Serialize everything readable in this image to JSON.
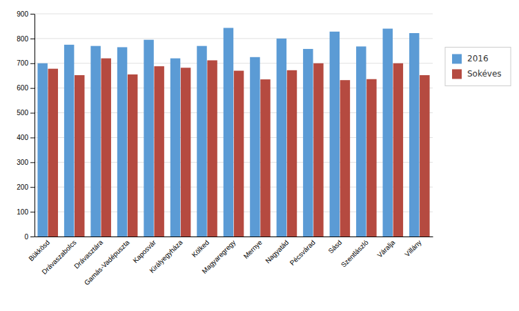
{
  "chart_data": {
    "type": "bar",
    "categories": [
      "Bükkösd",
      "Drávaszabolcs",
      "Drávasztára",
      "Gamás-Vadépuszta",
      "Kaposvár",
      "Királyegyháza",
      "Kölked",
      "Magyaregregy",
      "Mernye",
      "Nagyatád",
      "Pécsvárad",
      "Sásd",
      "Szentlászló",
      "Váralja",
      "Villány"
    ],
    "series": [
      {
        "name": "2016",
        "color": "#5b9bd5",
        "values": [
          700,
          775,
          770,
          765,
          795,
          720,
          770,
          843,
          725,
          800,
          758,
          828,
          768,
          840,
          822
        ]
      },
      {
        "name": "Sokéves",
        "color": "#b54a40",
        "values": [
          678,
          652,
          720,
          655,
          688,
          682,
          712,
          670,
          635,
          672,
          700,
          632,
          636,
          700,
          652
        ]
      }
    ],
    "ylim": [
      0,
      900
    ],
    "yticks": [
      0,
      100,
      200,
      300,
      400,
      500,
      600,
      700,
      800,
      900
    ],
    "grid": true,
    "legend": "right"
  }
}
